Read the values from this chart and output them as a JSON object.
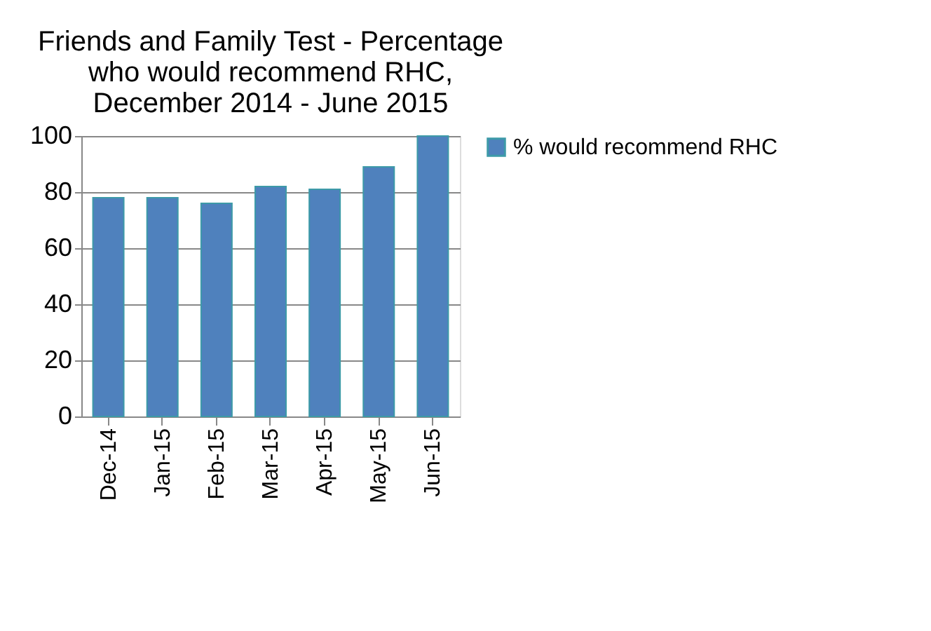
{
  "chart_data": {
    "type": "bar",
    "title": [
      "Friends and Family Test - Percentage",
      "who would recommend RHC,",
      "December 2014 - June 2015"
    ],
    "categories": [
      "Dec-14",
      "Jan-15",
      "Feb-15",
      "Mar-15",
      "Apr-15",
      "May-15",
      "Jun-15"
    ],
    "series": [
      {
        "name": "% would recommend RHC",
        "color": "#4f81bd",
        "values": [
          78,
          78,
          76,
          82,
          81,
          89,
          100
        ]
      }
    ],
    "ylim": [
      0,
      100
    ],
    "yticks": [
      0,
      20,
      40,
      60,
      80,
      100
    ],
    "grid": "y",
    "legend": "right"
  }
}
